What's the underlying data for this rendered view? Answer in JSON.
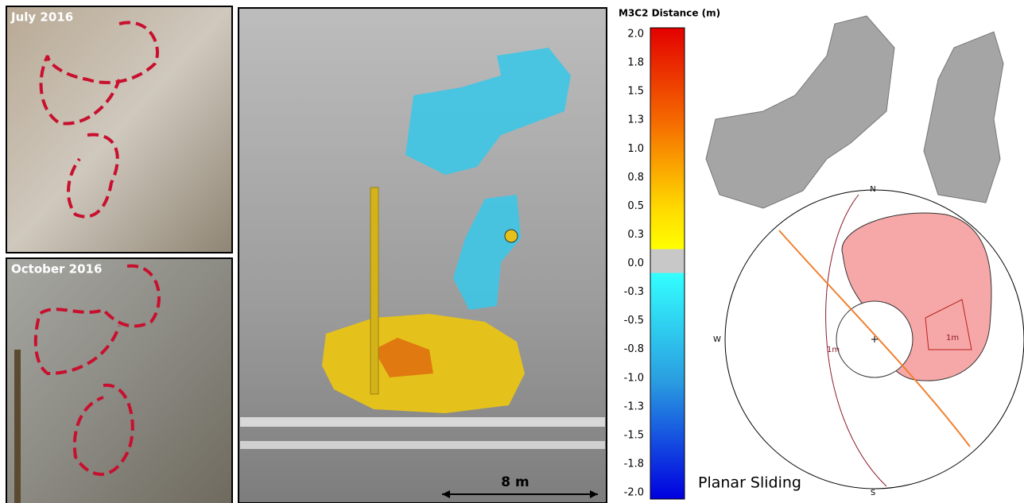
{
  "photos": [
    {
      "label": "July 2016"
    },
    {
      "label": "October 2016"
    }
  ],
  "model": {
    "scale_label": "8 m"
  },
  "colorbar": {
    "title": "M3C2 Distance (m)",
    "ticks": [
      "2.0",
      "1.8",
      "1.5",
      "1.3",
      "1.0",
      "0.8",
      "0.5",
      "0.3",
      "0.0",
      "-0.3",
      "-0.5",
      "-0.8",
      "-1.0",
      "-1.3",
      "-1.5",
      "-1.8",
      "-2.0"
    ]
  },
  "stereonet": {
    "north": "N",
    "south": "S",
    "west": "W",
    "plane_label": "1m",
    "zone_label": "1m",
    "mode": "Planar Sliding"
  }
}
